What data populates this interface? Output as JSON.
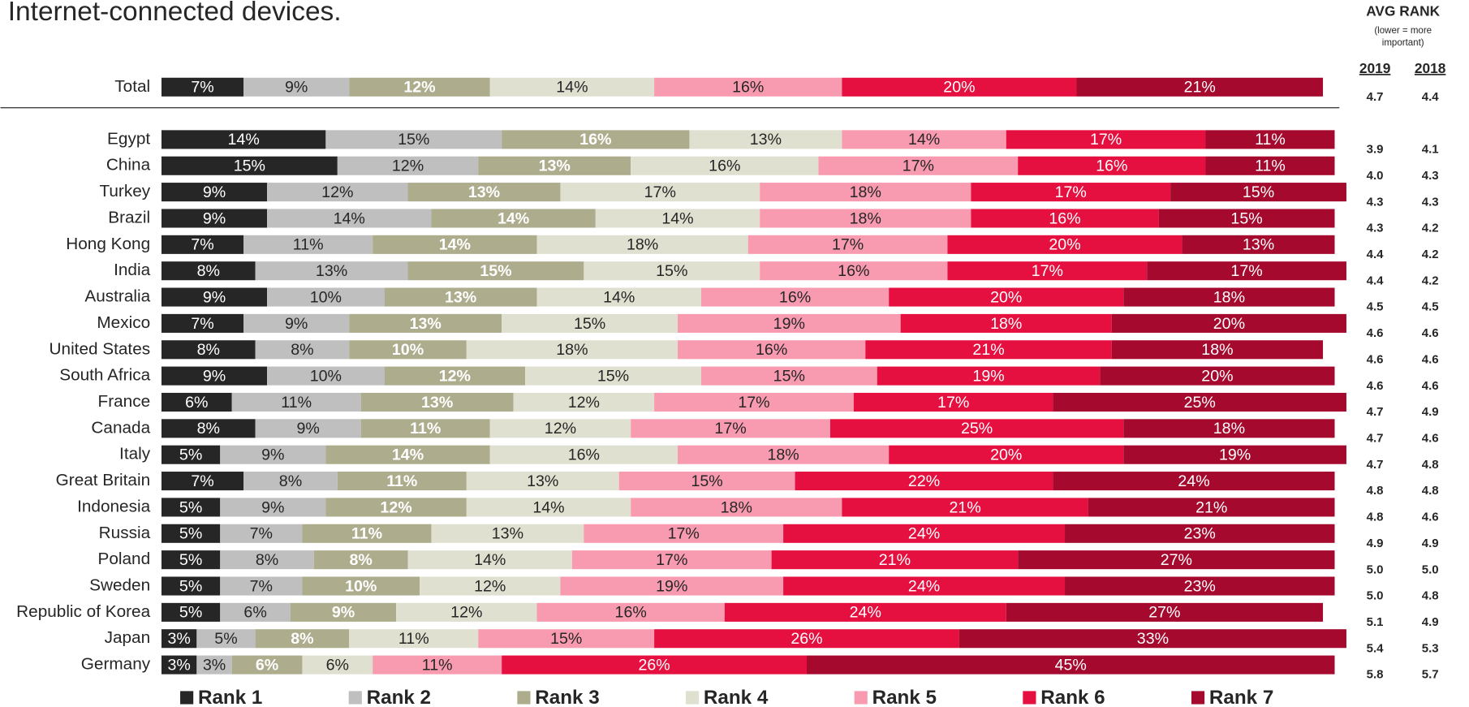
{
  "chart_data": {
    "type": "stacked-bar-horizontal",
    "title": "Internet-connected devices.",
    "avg_rank_title": "AVG RANK",
    "avg_rank_note": [
      "(lower = more",
      "important)"
    ],
    "avg_rank_years": [
      "2019",
      "2018"
    ],
    "categories": [
      "Total",
      "Egypt",
      "China",
      "Turkey",
      "Brazil",
      "Hong Kong",
      "India",
      "Australia",
      "Mexico",
      "United States",
      "South Africa",
      "France",
      "Canada",
      "Italy",
      "Great Britain",
      "Indonesia",
      "Russia",
      "Poland",
      "Sweden",
      "Republic of Korea",
      "Japan",
      "Germany"
    ],
    "avg_rank_2019": [
      "4.7",
      "3.9",
      "4.0",
      "4.3",
      "4.3",
      "4.4",
      "4.4",
      "4.5",
      "4.6",
      "4.6",
      "4.6",
      "4.7",
      "4.7",
      "4.7",
      "4.8",
      "4.8",
      "4.9",
      "5.0",
      "5.0",
      "5.1",
      "5.4",
      "5.8"
    ],
    "avg_rank_2018": [
      "4.4",
      "4.1",
      "4.3",
      "4.3",
      "4.2",
      "4.2",
      "4.2",
      "4.5",
      "4.6",
      "4.6",
      "4.6",
      "4.9",
      "4.6",
      "4.8",
      "4.8",
      "4.6",
      "4.9",
      "5.0",
      "4.8",
      "4.9",
      "5.3",
      "5.7"
    ],
    "xlim": [
      0,
      100
    ],
    "series": [
      {
        "name": "Rank 1",
        "color": "#262626",
        "label_color": "#ffffff",
        "label_bold": false,
        "values": [
          7,
          14,
          15,
          9,
          9,
          7,
          8,
          9,
          7,
          8,
          9,
          6,
          8,
          5,
          7,
          5,
          5,
          5,
          5,
          5,
          3,
          3
        ],
        "value_labels": [
          "7%",
          "14%",
          "15%",
          "9%",
          "9%",
          "7%",
          "8%",
          "9%",
          "7%",
          "8%",
          "9%",
          "6%",
          "8%",
          "5%",
          "7%",
          "5%",
          "5%",
          "5%",
          "5%",
          "5%",
          "3%",
          "3%"
        ]
      },
      {
        "name": "Rank 2",
        "color": "#bfbfbf",
        "label_color": "#262626",
        "label_bold": false,
        "values": [
          9,
          15,
          12,
          12,
          14,
          11,
          13,
          10,
          9,
          8,
          10,
          11,
          9,
          9,
          8,
          9,
          7,
          8,
          7,
          6,
          5,
          3
        ],
        "value_labels": [
          "9%",
          "15%",
          "12%",
          "12%",
          "14%",
          "11%",
          "13%",
          "10%",
          "9%",
          "8%",
          "10%",
          "11%",
          "9%",
          "9%",
          "8%",
          "9%",
          "7%",
          "8%",
          "7%",
          "6%",
          "5%",
          "3%"
        ]
      },
      {
        "name": "Rank 3",
        "color": "#adac8c",
        "label_color": "#ffffff",
        "label_bold": true,
        "values": [
          12,
          16,
          13,
          13,
          14,
          14,
          15,
          13,
          13,
          10,
          12,
          13,
          11,
          14,
          11,
          12,
          11,
          8,
          10,
          9,
          8,
          6
        ],
        "value_labels": [
          "12%",
          "16%",
          "13%",
          "13%",
          "14%",
          "14%",
          "15%",
          "13%",
          "13%",
          "10%",
          "12%",
          "13%",
          "11%",
          "14%",
          "11%",
          "12%",
          "11%",
          "8%",
          "10%",
          "9%",
          "8%",
          "6%"
        ]
      },
      {
        "name": "Rank 4",
        "color": "#e0e0d1",
        "label_color": "#262626",
        "label_bold": false,
        "values": [
          14,
          13,
          16,
          17,
          14,
          18,
          15,
          14,
          15,
          18,
          15,
          12,
          12,
          16,
          13,
          14,
          13,
          14,
          12,
          12,
          11,
          6
        ],
        "value_labels": [
          "14%",
          "13%",
          "16%",
          "17%",
          "14%",
          "18%",
          "15%",
          "14%",
          "15%",
          "18%",
          "15%",
          "12%",
          "12%",
          "16%",
          "13%",
          "14%",
          "13%",
          "14%",
          "12%",
          "12%",
          "11%",
          "6%"
        ]
      },
      {
        "name": "Rank 5",
        "color": "#f99bb0",
        "label_color": "#262626",
        "label_bold": false,
        "values": [
          16,
          14,
          17,
          18,
          18,
          17,
          16,
          16,
          19,
          16,
          15,
          17,
          17,
          18,
          15,
          18,
          17,
          17,
          19,
          16,
          15,
          11
        ],
        "value_labels": [
          "16%",
          "14%",
          "17%",
          "18%",
          "18%",
          "17%",
          "16%",
          "16%",
          "19%",
          "16%",
          "15%",
          "17%",
          "17%",
          "18%",
          "15%",
          "18%",
          "17%",
          "17%",
          "19%",
          "16%",
          "15%",
          "11%"
        ]
      },
      {
        "name": "Rank 6",
        "color": "#e5103f",
        "label_color": "#ffffff",
        "label_bold": false,
        "values": [
          20,
          17,
          16,
          17,
          16,
          20,
          17,
          20,
          18,
          21,
          19,
          17,
          25,
          20,
          22,
          21,
          24,
          21,
          24,
          24,
          26,
          26
        ],
        "value_labels": [
          "20%",
          "17%",
          "16%",
          "17%",
          "16%",
          "20%",
          "17%",
          "20%",
          "18%",
          "21%",
          "19%",
          "17%",
          "25%",
          "20%",
          "22%",
          "21%",
          "24%",
          "21%",
          "24%",
          "24%",
          "26%",
          "26%"
        ]
      },
      {
        "name": "Rank 7",
        "color": "#a50a2e",
        "label_color": "#ffffff",
        "label_bold": false,
        "values": [
          21,
          11,
          11,
          15,
          15,
          13,
          17,
          18,
          20,
          18,
          20,
          25,
          18,
          19,
          24,
          21,
          23,
          27,
          23,
          27,
          33,
          45
        ],
        "value_labels": [
          "21%",
          "11%",
          "11%",
          "15%",
          "15%",
          "13%",
          "17%",
          "18%",
          "20%",
          "18%",
          "20%",
          "25%",
          "18%",
          "19%",
          "24%",
          "21%",
          "23%",
          "27%",
          "23%",
          "27%",
          "33%",
          "45%"
        ]
      }
    ]
  }
}
